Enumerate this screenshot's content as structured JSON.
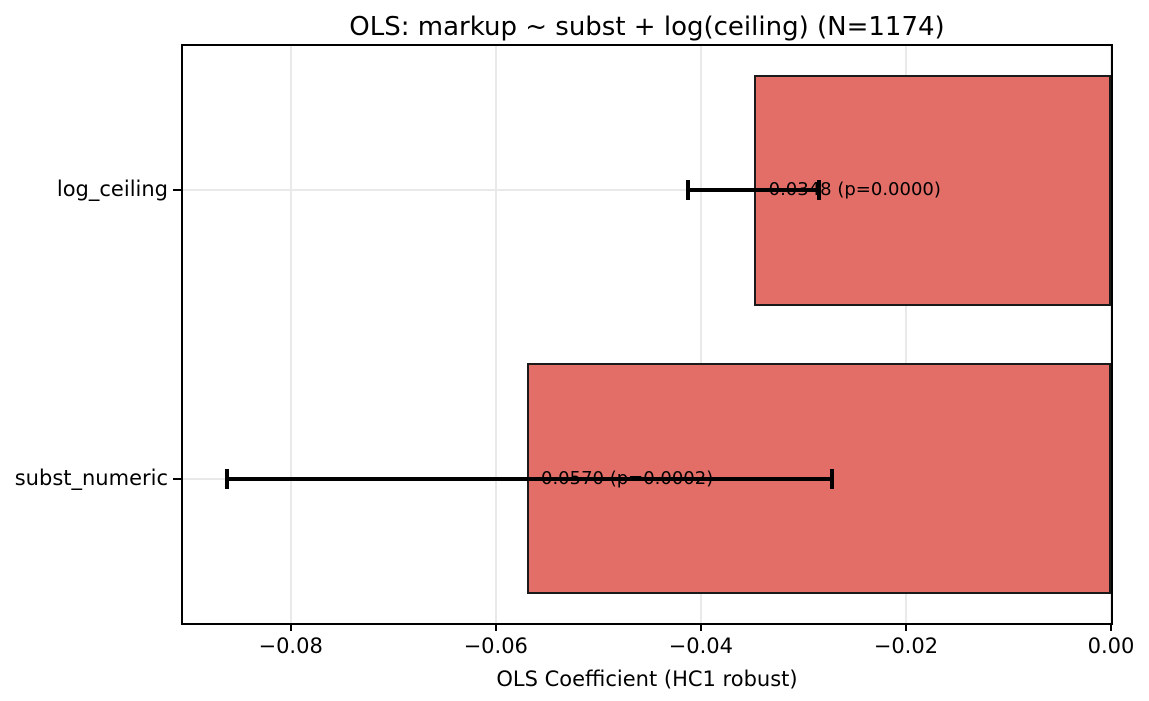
{
  "chart_data": {
    "type": "bar",
    "orientation": "horizontal",
    "title": "OLS: markup ~ subst + log(ceiling) (N=1174)",
    "xlabel": "OLS Coefficient (HC1 robust)",
    "ylabel": "",
    "categories": [
      "log_ceiling",
      "subst_numeric"
    ],
    "values": [
      -0.0348,
      -0.057
    ],
    "p_values": [
      "0.0000",
      "0.0002"
    ],
    "error_bars": [
      {
        "low": -0.0413,
        "high": -0.0285
      },
      {
        "low": -0.0862,
        "high": -0.0272
      }
    ],
    "annotations": [
      "-0.0348 (p=0.0000)",
      "-0.0570 (p=0.0002)"
    ],
    "x_ticks": [
      -0.08,
      -0.06,
      -0.04,
      -0.02,
      0.0
    ],
    "x_tick_labels": [
      "−0.08",
      "−0.06",
      "−0.04",
      "−0.02",
      "0.00"
    ],
    "xlim": [
      -0.0905,
      0.0
    ],
    "ylim": [
      -0.5,
      1.5
    ],
    "bar_height": 0.8,
    "grid": true,
    "legend": null,
    "colors": {
      "bar_fill": "#e26e67",
      "bar_edge": "#1a1a1a",
      "error_bar": "#000000",
      "grid": "#e9e9e9",
      "spine": "#000000",
      "text": "#000000",
      "background": "#ffffff"
    }
  }
}
